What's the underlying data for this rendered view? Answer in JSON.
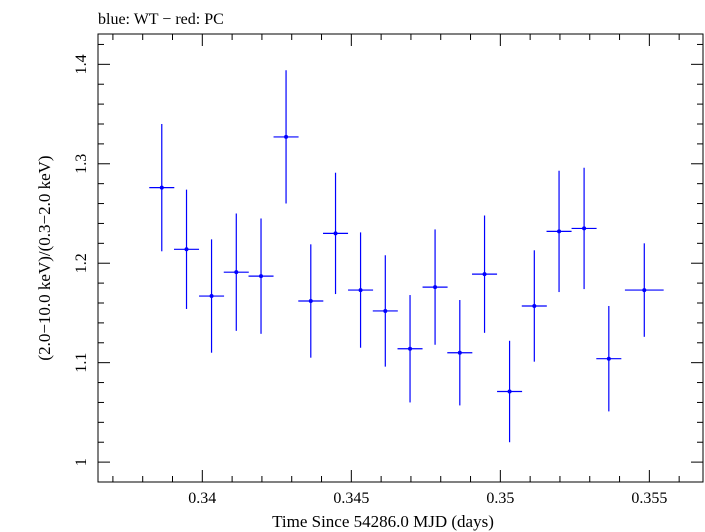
{
  "chart_data": {
    "type": "scatter",
    "title": "blue: WT − red: PC",
    "xlabel": "Time Since 54286.0 MJD (days)",
    "ylabel": "(2.0−10.0 keV)/(0.3−2.0 keV)",
    "xlim": [
      0.3365,
      0.3568
    ],
    "ylim": [
      0.98,
      1.4305
    ],
    "x_ticks": [
      0.34,
      0.345,
      0.35,
      0.355
    ],
    "x_tick_labels": [
      "0.34",
      "0.345",
      "0.35",
      "0.355"
    ],
    "y_ticks": [
      1.0,
      1.1,
      1.2,
      1.3,
      1.4
    ],
    "y_tick_labels": [
      "1",
      "1.1",
      "1.2",
      "1.3",
      "1.4"
    ],
    "grid": false,
    "series": [
      {
        "color": "#0000ff",
        "points": [
          {
            "x": 0.33864,
            "xerr": 0.00042,
            "y": 1.276,
            "yerr": 0.064
          },
          {
            "x": 0.33947,
            "xerr": 0.00042,
            "y": 1.214,
            "yerr": 0.06
          },
          {
            "x": 0.34031,
            "xerr": 0.00042,
            "y": 1.167,
            "yerr": 0.057
          },
          {
            "x": 0.34114,
            "xerr": 0.00042,
            "y": 1.191,
            "yerr": 0.059
          },
          {
            "x": 0.34197,
            "xerr": 0.00042,
            "y": 1.187,
            "yerr": 0.058
          },
          {
            "x": 0.34281,
            "xerr": 0.00042,
            "y": 1.327,
            "yerr": 0.067
          },
          {
            "x": 0.34364,
            "xerr": 0.00042,
            "y": 1.162,
            "yerr": 0.057
          },
          {
            "x": 0.34447,
            "xerr": 0.00042,
            "y": 1.23,
            "yerr": 0.061
          },
          {
            "x": 0.34531,
            "xerr": 0.00042,
            "y": 1.173,
            "yerr": 0.058
          },
          {
            "x": 0.34614,
            "xerr": 0.00042,
            "y": 1.152,
            "yerr": 0.056
          },
          {
            "x": 0.34697,
            "xerr": 0.00042,
            "y": 1.114,
            "yerr": 0.054
          },
          {
            "x": 0.34781,
            "xerr": 0.00042,
            "y": 1.176,
            "yerr": 0.058
          },
          {
            "x": 0.34864,
            "xerr": 0.00042,
            "y": 1.11,
            "yerr": 0.053
          },
          {
            "x": 0.34947,
            "xerr": 0.00042,
            "y": 1.189,
            "yerr": 0.059
          },
          {
            "x": 0.35031,
            "xerr": 0.00042,
            "y": 1.071,
            "yerr": 0.051
          },
          {
            "x": 0.35114,
            "xerr": 0.00042,
            "y": 1.157,
            "yerr": 0.056
          },
          {
            "x": 0.35197,
            "xerr": 0.00042,
            "y": 1.232,
            "yerr": 0.061
          },
          {
            "x": 0.35281,
            "xerr": 0.00042,
            "y": 1.235,
            "yerr": 0.061
          },
          {
            "x": 0.35364,
            "xerr": 0.00042,
            "y": 1.104,
            "yerr": 0.053
          },
          {
            "x": 0.35483,
            "xerr": 0.00065,
            "y": 1.173,
            "yerr": 0.047
          }
        ]
      }
    ]
  }
}
